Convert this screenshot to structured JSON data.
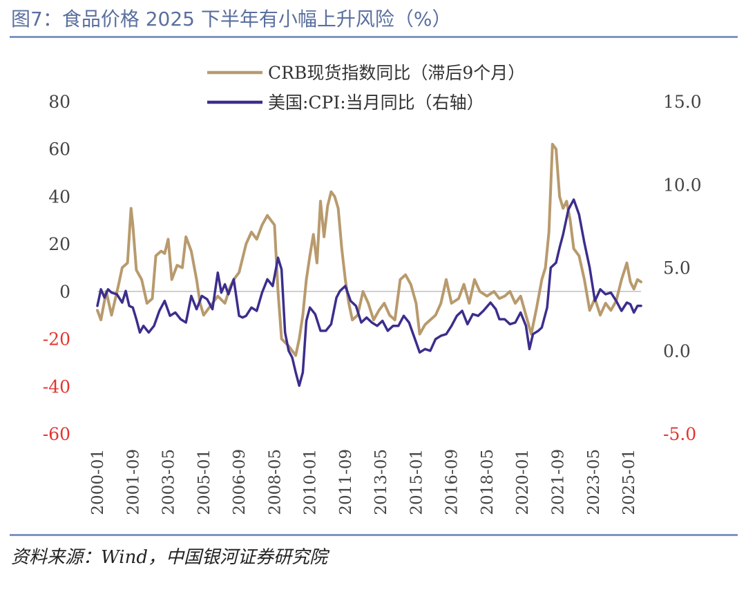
{
  "title": "图7：食品价格 2025 下半年有小幅上升风险（%）",
  "source": "资料来源：Wind，中国银河证券研究院",
  "colors": {
    "crb": "#b89a6d",
    "cpi": "#3b2e8c",
    "negative": "#e3342f",
    "axis": "#444444",
    "rule": "#7f93c4"
  },
  "chart_data": {
    "type": "line",
    "title": "",
    "x_ticks": [
      "2000-01",
      "2001-09",
      "2003-05",
      "2005-01",
      "2006-09",
      "2008-05",
      "2010-01",
      "2011-09",
      "2013-05",
      "2015-01",
      "2016-09",
      "2018-05",
      "2020-01",
      "2021-09",
      "2023-05",
      "2025-01"
    ],
    "left_axis": {
      "range": [
        -60,
        80
      ],
      "ticks": [
        "80",
        "60",
        "40",
        "20",
        "0",
        "-20",
        "-40",
        "-60"
      ]
    },
    "right_axis": {
      "range": [
        -5.0,
        15.0
      ],
      "ticks": [
        "15.0",
        "10.0",
        "5.0",
        "0.0",
        "-5.0"
      ]
    },
    "legend_position": "top-center",
    "series": [
      {
        "name": "CRB现货指数同比（滞后9个月）",
        "axis": "left",
        "points": [
          [
            "2000-01",
            -8
          ],
          [
            "2000-03",
            -12
          ],
          [
            "2000-06",
            0
          ],
          [
            "2000-09",
            -10
          ],
          [
            "2001-01",
            3
          ],
          [
            "2001-03",
            10
          ],
          [
            "2001-06",
            12
          ],
          [
            "2001-08",
            35
          ],
          [
            "2001-09",
            28
          ],
          [
            "2001-11",
            9
          ],
          [
            "2002-02",
            5
          ],
          [
            "2002-05",
            -5
          ],
          [
            "2002-08",
            -3
          ],
          [
            "2002-10",
            15
          ],
          [
            "2003-01",
            17
          ],
          [
            "2003-03",
            16
          ],
          [
            "2003-05",
            22
          ],
          [
            "2003-07",
            5
          ],
          [
            "2003-10",
            11
          ],
          [
            "2004-01",
            10
          ],
          [
            "2004-03",
            23
          ],
          [
            "2004-06",
            17
          ],
          [
            "2004-09",
            5
          ],
          [
            "2004-11",
            -5
          ],
          [
            "2005-01",
            -10
          ],
          [
            "2005-03",
            -8
          ],
          [
            "2005-06",
            -5
          ],
          [
            "2005-09",
            -2
          ],
          [
            "2006-01",
            -5
          ],
          [
            "2006-04",
            2
          ],
          [
            "2006-06",
            5
          ],
          [
            "2006-09",
            8
          ],
          [
            "2007-01",
            20
          ],
          [
            "2007-04",
            25
          ],
          [
            "2007-07",
            22
          ],
          [
            "2007-10",
            28
          ],
          [
            "2008-01",
            32
          ],
          [
            "2008-03",
            30
          ],
          [
            "2008-05",
            28
          ],
          [
            "2008-07",
            0
          ],
          [
            "2008-09",
            -20
          ],
          [
            "2009-01",
            -23
          ],
          [
            "2009-03",
            -25
          ],
          [
            "2009-05",
            -27
          ],
          [
            "2009-07",
            -20
          ],
          [
            "2009-09",
            -10
          ],
          [
            "2009-11",
            5
          ],
          [
            "2010-01",
            15
          ],
          [
            "2010-03",
            24
          ],
          [
            "2010-05",
            12
          ],
          [
            "2010-07",
            38
          ],
          [
            "2010-09",
            23
          ],
          [
            "2010-11",
            36
          ],
          [
            "2011-01",
            42
          ],
          [
            "2011-03",
            40
          ],
          [
            "2011-05",
            35
          ],
          [
            "2011-07",
            18
          ],
          [
            "2011-09",
            5
          ],
          [
            "2011-11",
            -5
          ],
          [
            "2012-01",
            -12
          ],
          [
            "2012-04",
            -10
          ],
          [
            "2012-07",
            0
          ],
          [
            "2012-10",
            -5
          ],
          [
            "2013-01",
            -12
          ],
          [
            "2013-04",
            -8
          ],
          [
            "2013-07",
            -5
          ],
          [
            "2013-10",
            -10
          ],
          [
            "2014-01",
            -12
          ],
          [
            "2014-04",
            5
          ],
          [
            "2014-07",
            7
          ],
          [
            "2014-10",
            3
          ],
          [
            "2015-01",
            -5
          ],
          [
            "2015-03",
            -18
          ],
          [
            "2015-06",
            -14
          ],
          [
            "2015-09",
            -12
          ],
          [
            "2015-12",
            -10
          ],
          [
            "2016-03",
            -5
          ],
          [
            "2016-06",
            5
          ],
          [
            "2016-09",
            -5
          ],
          [
            "2017-01",
            -3
          ],
          [
            "2017-04",
            3
          ],
          [
            "2017-07",
            -5
          ],
          [
            "2017-10",
            5
          ],
          [
            "2018-01",
            0
          ],
          [
            "2018-05",
            -2
          ],
          [
            "2018-09",
            0
          ],
          [
            "2018-12",
            -3
          ],
          [
            "2019-03",
            -2
          ],
          [
            "2019-06",
            0
          ],
          [
            "2019-09",
            -5
          ],
          [
            "2019-12",
            -2
          ],
          [
            "2020-03",
            -10
          ],
          [
            "2020-06",
            -18
          ],
          [
            "2020-09",
            -7
          ],
          [
            "2020-12",
            5
          ],
          [
            "2021-02",
            10
          ],
          [
            "2021-04",
            25
          ],
          [
            "2021-06",
            62
          ],
          [
            "2021-08",
            60
          ],
          [
            "2021-10",
            40
          ],
          [
            "2021-12",
            35
          ],
          [
            "2022-02",
            38
          ],
          [
            "2022-04",
            30
          ],
          [
            "2022-06",
            18
          ],
          [
            "2022-09",
            15
          ],
          [
            "2022-12",
            5
          ],
          [
            "2023-03",
            -8
          ],
          [
            "2023-06",
            -3
          ],
          [
            "2023-09",
            -10
          ],
          [
            "2023-12",
            -5
          ],
          [
            "2024-03",
            -8
          ],
          [
            "2024-06",
            -4
          ],
          [
            "2024-09",
            5
          ],
          [
            "2024-12",
            12
          ],
          [
            "2025-02",
            4
          ],
          [
            "2025-04",
            1
          ],
          [
            "2025-06",
            5
          ],
          [
            "2025-08",
            4
          ]
        ]
      },
      {
        "name": "美国:CPI:当月同比（右轴）",
        "axis": "right",
        "points": [
          [
            "2000-01",
            2.7
          ],
          [
            "2000-03",
            3.7
          ],
          [
            "2000-05",
            3.2
          ],
          [
            "2000-07",
            3.7
          ],
          [
            "2000-09",
            3.5
          ],
          [
            "2000-12",
            3.4
          ],
          [
            "2001-03",
            2.9
          ],
          [
            "2001-05",
            3.6
          ],
          [
            "2001-07",
            2.7
          ],
          [
            "2001-09",
            2.6
          ],
          [
            "2001-11",
            1.9
          ],
          [
            "2002-01",
            1.1
          ],
          [
            "2002-03",
            1.5
          ],
          [
            "2002-06",
            1.1
          ],
          [
            "2002-09",
            1.5
          ],
          [
            "2002-12",
            2.4
          ],
          [
            "2003-03",
            3.0
          ],
          [
            "2003-06",
            2.1
          ],
          [
            "2003-09",
            2.3
          ],
          [
            "2003-12",
            1.9
          ],
          [
            "2004-03",
            1.7
          ],
          [
            "2004-06",
            3.3
          ],
          [
            "2004-09",
            2.5
          ],
          [
            "2004-12",
            3.3
          ],
          [
            "2005-03",
            3.1
          ],
          [
            "2005-06",
            2.5
          ],
          [
            "2005-09",
            4.7
          ],
          [
            "2005-11",
            3.5
          ],
          [
            "2006-01",
            4.0
          ],
          [
            "2006-03",
            3.4
          ],
          [
            "2006-06",
            4.3
          ],
          [
            "2006-09",
            2.1
          ],
          [
            "2006-11",
            2.0
          ],
          [
            "2007-01",
            2.1
          ],
          [
            "2007-04",
            2.6
          ],
          [
            "2007-07",
            2.4
          ],
          [
            "2007-10",
            3.5
          ],
          [
            "2008-01",
            4.3
          ],
          [
            "2008-04",
            3.9
          ],
          [
            "2008-07",
            5.6
          ],
          [
            "2008-09",
            4.9
          ],
          [
            "2008-11",
            1.1
          ],
          [
            "2009-01",
            0.0
          ],
          [
            "2009-03",
            -0.4
          ],
          [
            "2009-05",
            -1.3
          ],
          [
            "2009-07",
            -2.1
          ],
          [
            "2009-09",
            -1.3
          ],
          [
            "2009-11",
            1.8
          ],
          [
            "2010-01",
            2.6
          ],
          [
            "2010-04",
            2.2
          ],
          [
            "2010-07",
            1.2
          ],
          [
            "2010-10",
            1.2
          ],
          [
            "2011-01",
            1.6
          ],
          [
            "2011-04",
            3.2
          ],
          [
            "2011-06",
            3.6
          ],
          [
            "2011-09",
            3.9
          ],
          [
            "2011-12",
            3.0
          ],
          [
            "2012-03",
            2.7
          ],
          [
            "2012-06",
            1.7
          ],
          [
            "2012-09",
            2.0
          ],
          [
            "2012-12",
            1.7
          ],
          [
            "2013-03",
            1.5
          ],
          [
            "2013-06",
            1.8
          ],
          [
            "2013-09",
            1.2
          ],
          [
            "2013-12",
            1.5
          ],
          [
            "2014-03",
            1.5
          ],
          [
            "2014-06",
            2.1
          ],
          [
            "2014-09",
            1.7
          ],
          [
            "2014-12",
            0.8
          ],
          [
            "2015-03",
            -0.1
          ],
          [
            "2015-06",
            0.1
          ],
          [
            "2015-09",
            0.0
          ],
          [
            "2015-12",
            0.7
          ],
          [
            "2016-03",
            0.9
          ],
          [
            "2016-06",
            1.0
          ],
          [
            "2016-09",
            1.5
          ],
          [
            "2016-12",
            2.1
          ],
          [
            "2017-03",
            2.4
          ],
          [
            "2017-06",
            1.6
          ],
          [
            "2017-09",
            2.2
          ],
          [
            "2017-12",
            2.1
          ],
          [
            "2018-03",
            2.4
          ],
          [
            "2018-07",
            2.9
          ],
          [
            "2018-10",
            2.5
          ],
          [
            "2018-12",
            1.9
          ],
          [
            "2019-03",
            1.9
          ],
          [
            "2019-06",
            1.6
          ],
          [
            "2019-09",
            1.7
          ],
          [
            "2019-12",
            2.3
          ],
          [
            "2020-03",
            1.5
          ],
          [
            "2020-05",
            0.1
          ],
          [
            "2020-07",
            1.0
          ],
          [
            "2020-10",
            1.2
          ],
          [
            "2020-12",
            1.4
          ],
          [
            "2021-03",
            2.6
          ],
          [
            "2021-05",
            5.0
          ],
          [
            "2021-08",
            5.3
          ],
          [
            "2021-10",
            6.2
          ],
          [
            "2021-12",
            7.0
          ],
          [
            "2022-03",
            8.5
          ],
          [
            "2022-06",
            9.1
          ],
          [
            "2022-09",
            8.2
          ],
          [
            "2022-12",
            6.5
          ],
          [
            "2023-03",
            5.0
          ],
          [
            "2023-06",
            3.0
          ],
          [
            "2023-09",
            3.7
          ],
          [
            "2023-12",
            3.4
          ],
          [
            "2024-03",
            3.5
          ],
          [
            "2024-06",
            3.0
          ],
          [
            "2024-09",
            2.4
          ],
          [
            "2024-12",
            2.9
          ],
          [
            "2025-02",
            2.8
          ],
          [
            "2025-04",
            2.3
          ],
          [
            "2025-06",
            2.7
          ],
          [
            "2025-08",
            2.7
          ]
        ]
      }
    ]
  }
}
